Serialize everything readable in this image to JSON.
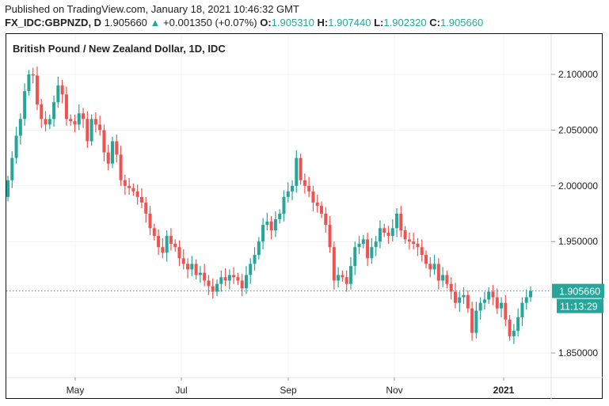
{
  "header": {
    "published": "Published on TradingView.com, January 18, 2021 10:46:32 GMT",
    "symbol": "FX_IDC:GBPNZD, D",
    "last": "1.905660",
    "change": "+0.001350 (+0.07%)",
    "o_label": "O:",
    "o": "1.905310",
    "h_label": "H:",
    "h": "1.907440",
    "l_label": "L:",
    "l": "1.902320",
    "c_label": "C:",
    "c": "1.905660"
  },
  "colors": {
    "up": "#26a69a",
    "down": "#ef5350",
    "grid": "#f0f3f3"
  },
  "chart_data": {
    "type": "candlestick",
    "title": "British Pound / New Zealand Dollar, 1D, IDC",
    "ylim": [
      1.82,
      2.13
    ],
    "y_ticks": [
      "2.100000",
      "2.050000",
      "2.000000",
      "1.950000",
      "1.850000"
    ],
    "y_tick_values": [
      2.1,
      2.05,
      2.0,
      1.95,
      1.85
    ],
    "x_ticks": [
      "May",
      "Jul",
      "Sep",
      "Nov",
      "2021"
    ],
    "last_price_label": "1.905660",
    "last_price": 1.90566,
    "countdown": "11:13:29",
    "first_open": 1.99,
    "closes": [
      2.005,
      2.025,
      2.045,
      2.06,
      2.085,
      2.1,
      2.099,
      2.073,
      2.06,
      2.055,
      2.06,
      2.075,
      2.09,
      2.082,
      2.06,
      2.058,
      2.055,
      2.065,
      2.06,
      2.04,
      2.06,
      2.055,
      2.05,
      2.03,
      2.02,
      2.04,
      2.028,
      2.005,
      2.0,
      1.998,
      1.995,
      1.99,
      1.985,
      1.975,
      1.962,
      1.955,
      1.945,
      1.94,
      1.955,
      1.948,
      1.945,
      1.935,
      1.93,
      1.925,
      1.93,
      1.92,
      1.922,
      1.915,
      1.91,
      1.905,
      1.912,
      1.918,
      1.915,
      1.92,
      1.918,
      1.915,
      1.908,
      1.92,
      1.93,
      1.938,
      1.95,
      1.965,
      1.968,
      1.96,
      1.97,
      1.975,
      1.99,
      1.995,
      2.0,
      2.025,
      2.005,
      2.0,
      1.995,
      1.985,
      1.982,
      1.975,
      1.965,
      1.945,
      1.915,
      1.92,
      1.918,
      1.912,
      1.928,
      1.945,
      1.948,
      1.952,
      1.935,
      1.945,
      1.95,
      1.962,
      1.958,
      1.955,
      1.962,
      1.975,
      1.96,
      1.952,
      1.95,
      1.948,
      1.945,
      1.938,
      1.93,
      1.925,
      1.93,
      1.915,
      1.92,
      1.912,
      1.905,
      1.895,
      1.9,
      1.902,
      1.89,
      1.868,
      1.888,
      1.895,
      1.898,
      1.905,
      1.9,
      1.89,
      1.895,
      1.88,
      1.865,
      1.87,
      1.882,
      1.895,
      1.9,
      1.9057
    ]
  }
}
